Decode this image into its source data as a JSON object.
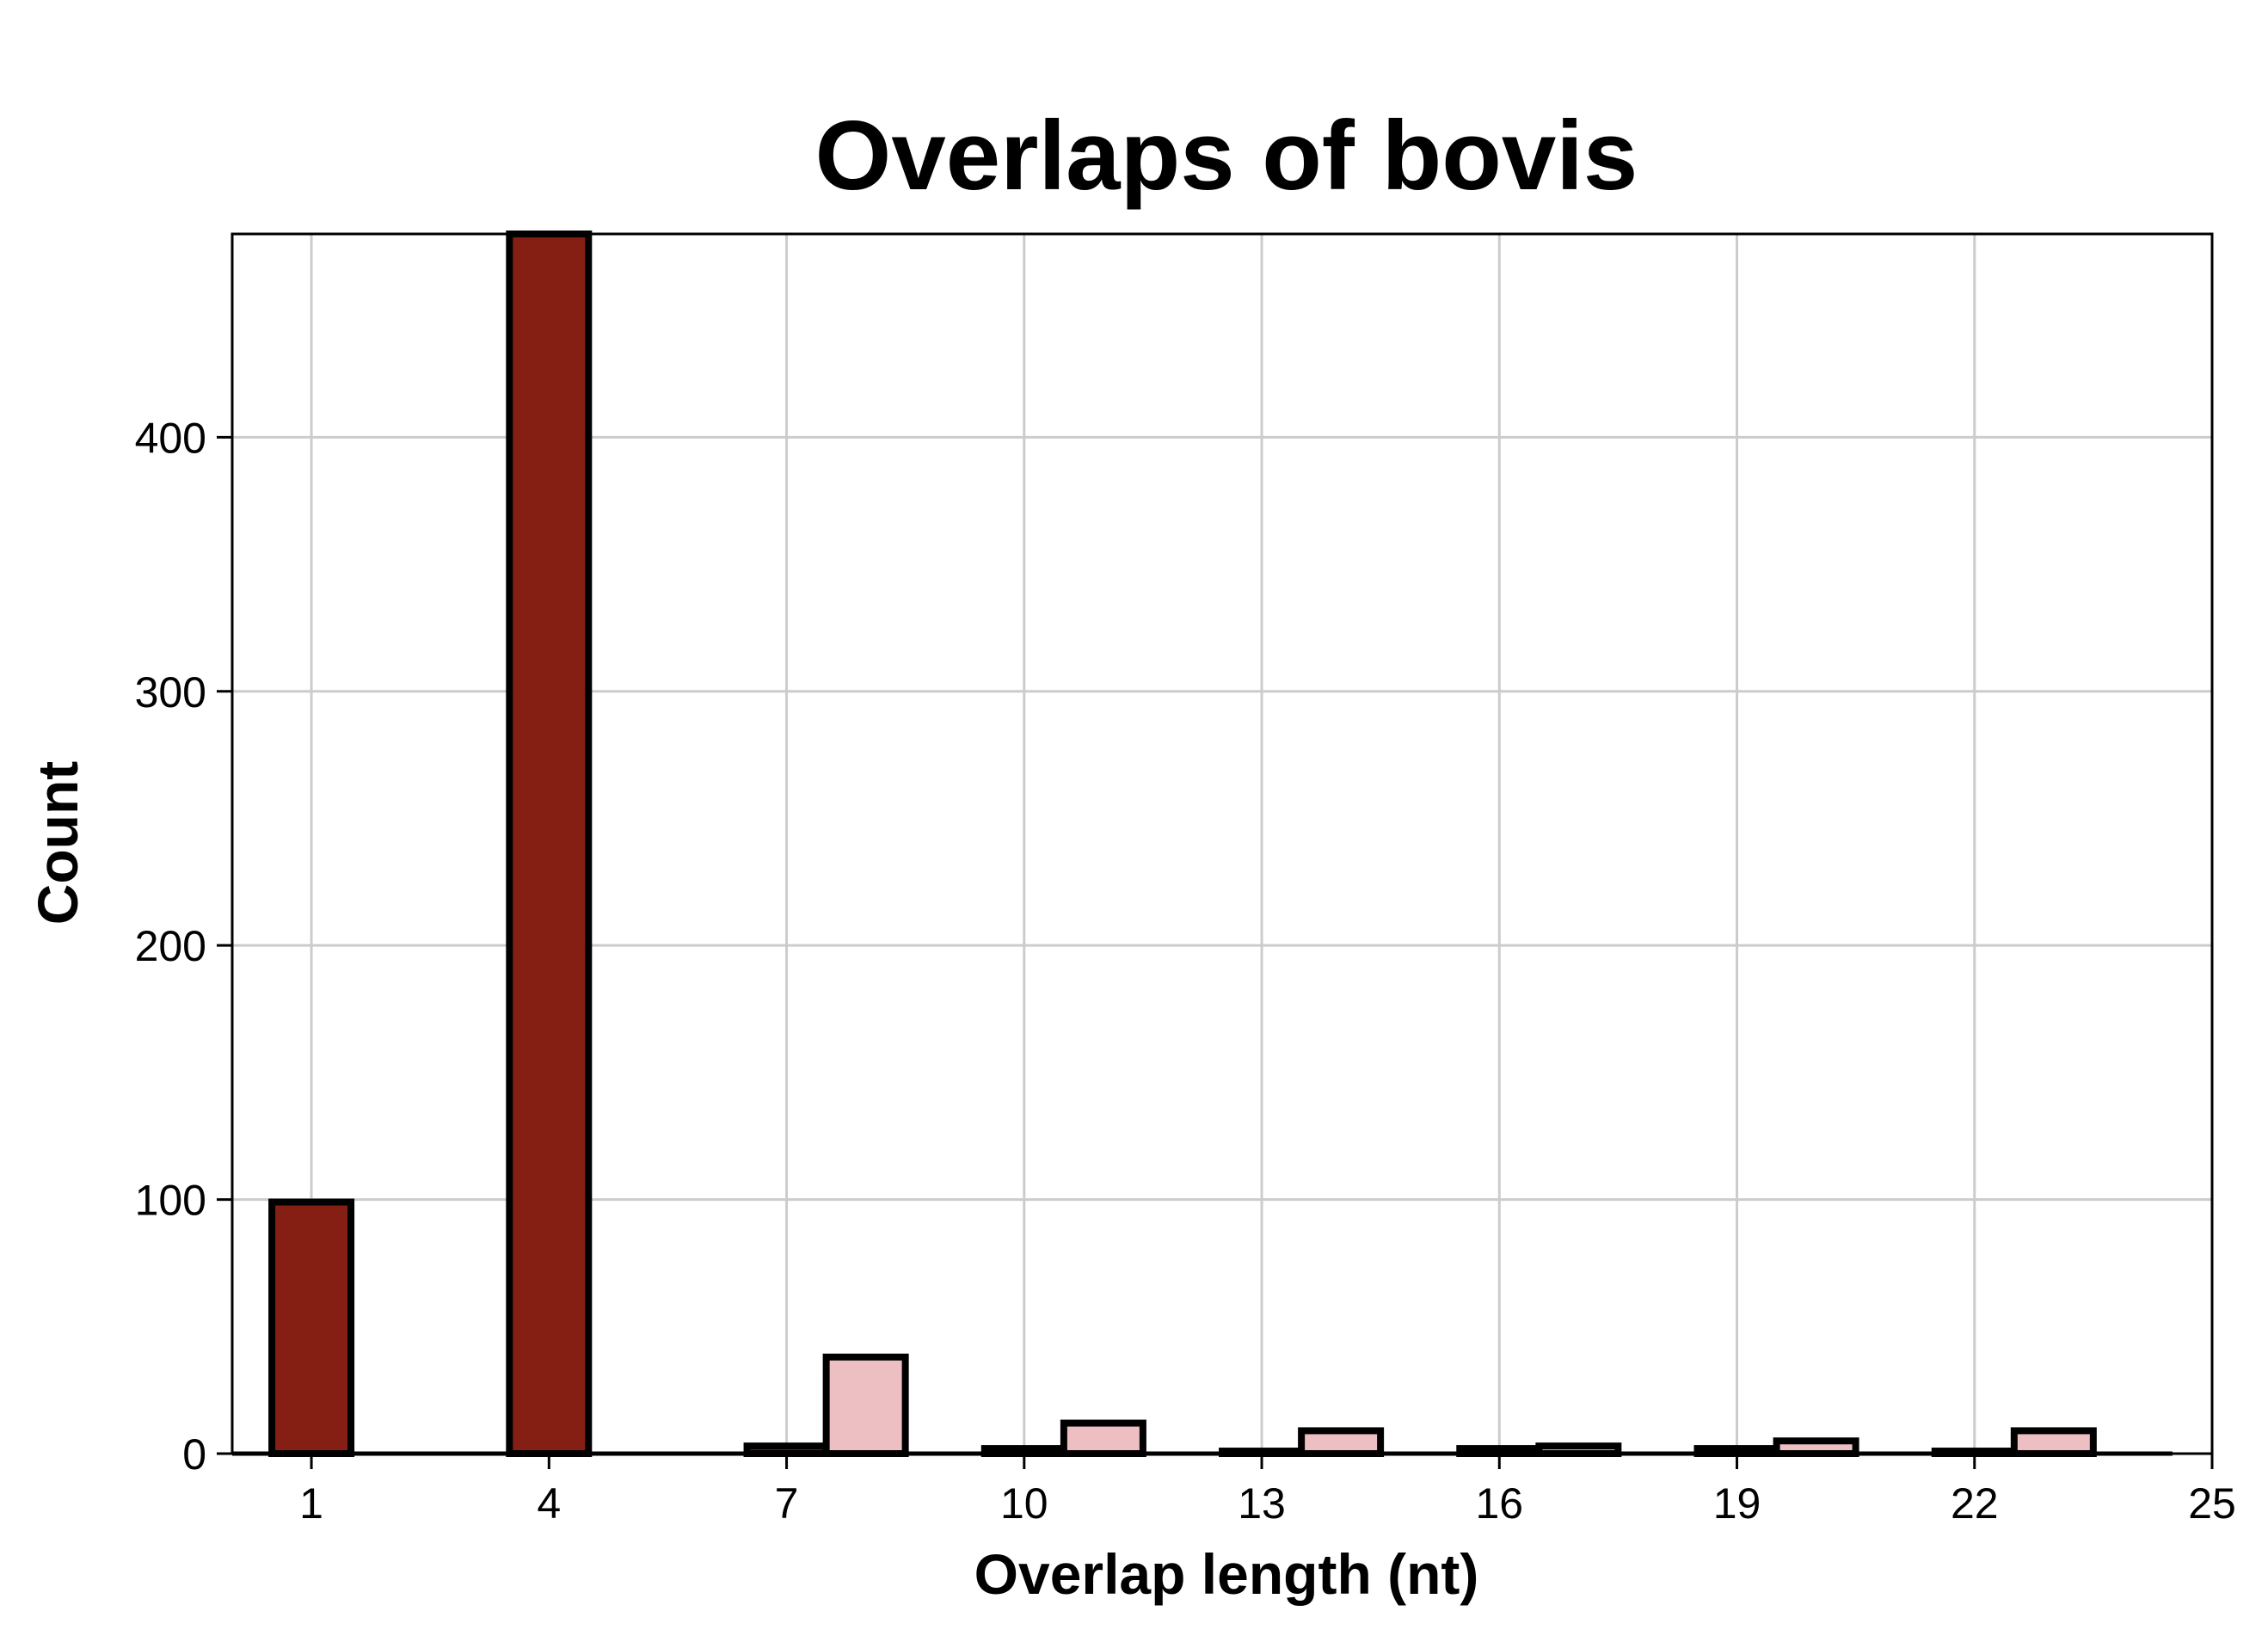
{
  "chart_data": {
    "type": "bar",
    "title": "Overlaps of bovis",
    "xlabel": "Overlap length (nt)",
    "ylabel": "Count",
    "xlim": [
      0,
      25
    ],
    "ylim": [
      0,
      480
    ],
    "xticks": [
      1,
      4,
      7,
      10,
      13,
      16,
      19,
      22,
      25
    ],
    "yticks": [
      0,
      100,
      200,
      300,
      400
    ],
    "grid": true,
    "legend": "none",
    "series": [
      {
        "color": "#861F13",
        "x": [
          1,
          4,
          7,
          10,
          13,
          16,
          19,
          22
        ],
        "values": [
          99,
          480,
          3,
          2,
          1,
          2,
          2,
          1
        ]
      },
      {
        "color": "#EDBFC2",
        "x": [
          2,
          5,
          8,
          11,
          14,
          17,
          20,
          23
        ],
        "values": [
          0,
          0,
          38,
          12,
          9,
          3,
          5,
          9
        ]
      }
    ]
  }
}
